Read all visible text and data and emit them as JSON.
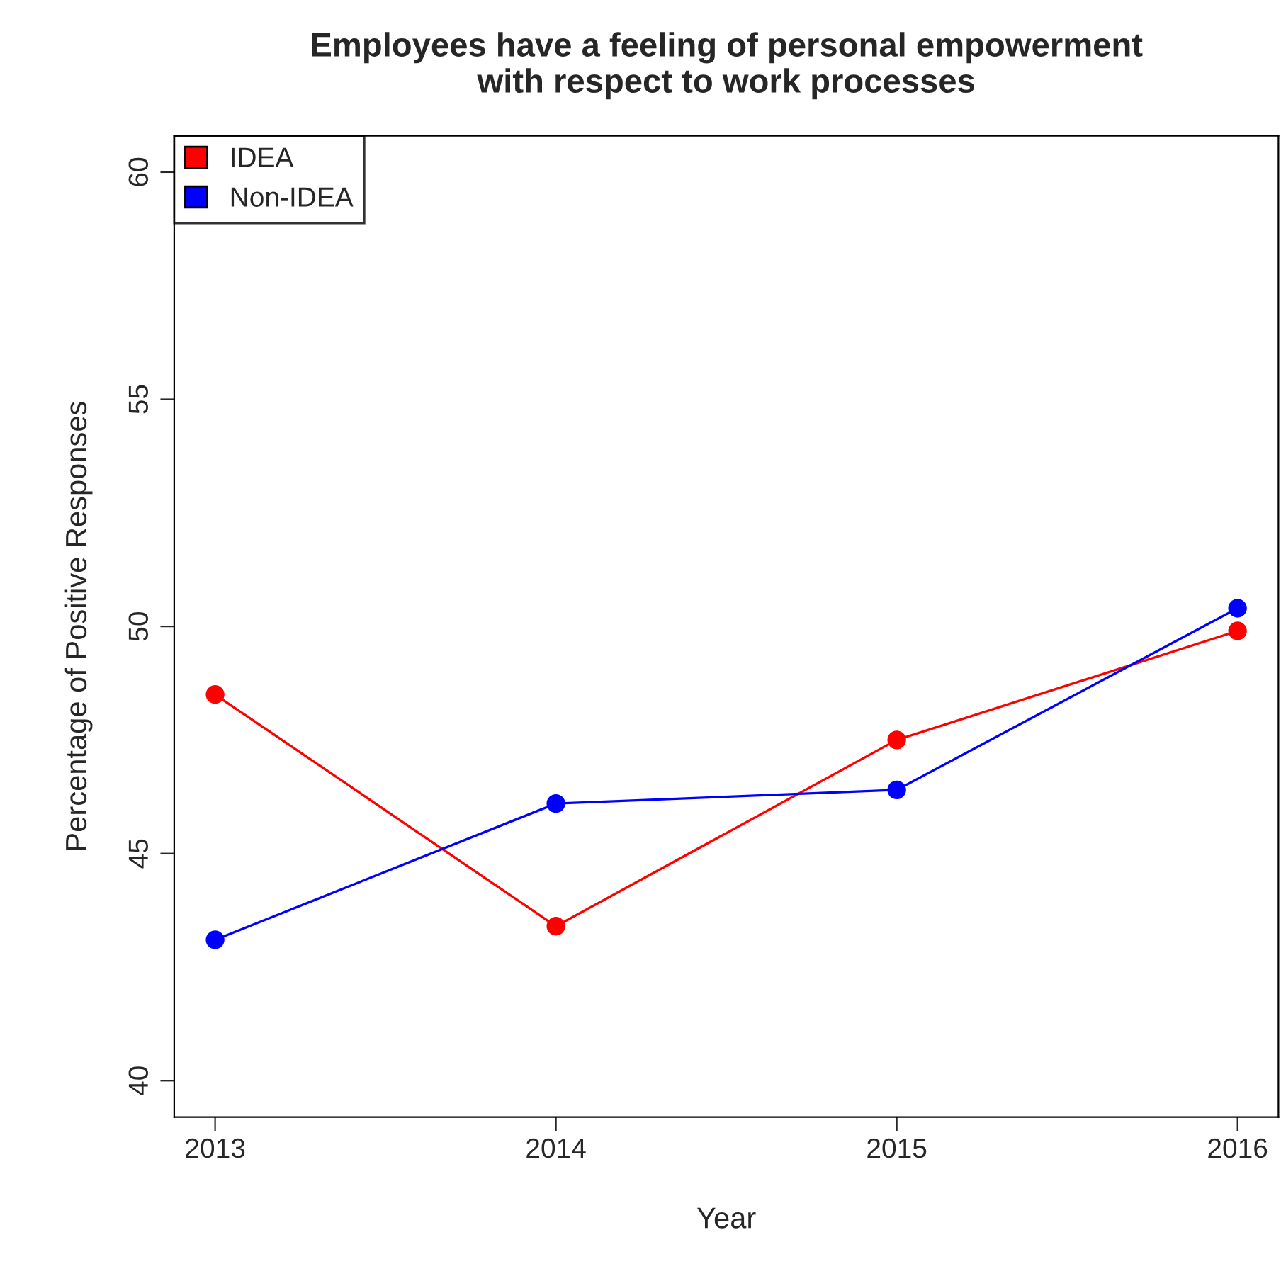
{
  "chart_data": {
    "type": "line",
    "title": "Employees have a feeling of personal empowerment\nwith respect to work processes",
    "xlabel": "Year",
    "ylabel": "Percentage of Positive Responses",
    "x": [
      2013,
      2014,
      2015,
      2016
    ],
    "series": [
      {
        "name": "IDEA",
        "color": "#ff0000",
        "values": [
          48.5,
          43.4,
          47.5,
          49.9
        ]
      },
      {
        "name": "Non-IDEA",
        "color": "#0000ff",
        "values": [
          43.1,
          46.1,
          46.4,
          50.4
        ]
      }
    ],
    "xlim": [
      2012.88,
      2016.12
    ],
    "xticks": [
      2013,
      2014,
      2015,
      2016
    ],
    "ylim": [
      39.2,
      60.8
    ],
    "yticks": [
      40,
      45,
      50,
      55,
      60
    ],
    "grid": false,
    "legend": "top left",
    "marker": "circle",
    "line_style": "solid"
  }
}
